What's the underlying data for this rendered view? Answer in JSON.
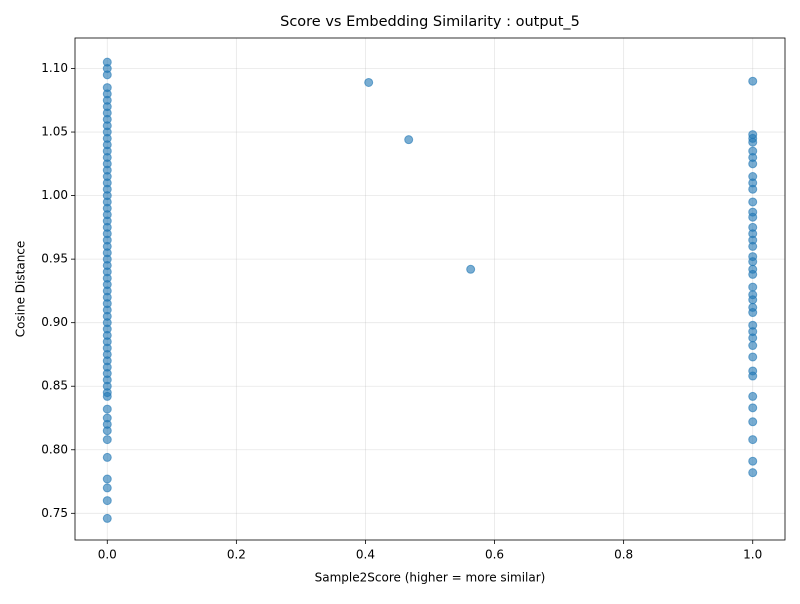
{
  "chart_data": {
    "type": "scatter",
    "title": "Score vs Embedding Similarity : output_5",
    "x_label": "Sample2Score (higher = more similar)",
    "y_label": "Cosine Distance",
    "series": [
      {
        "name": "output_5",
        "color": "#1f77b4",
        "x": [
          0,
          0,
          0,
          0,
          0,
          0,
          0,
          0,
          0,
          0,
          0,
          0,
          0,
          0,
          0,
          0,
          0,
          0,
          0,
          0,
          0,
          0,
          0,
          0,
          0,
          0,
          0,
          0,
          0,
          0,
          0,
          0,
          0,
          0,
          0,
          0,
          0,
          0,
          0,
          0,
          0,
          0,
          0,
          0,
          0,
          0,
          0,
          0,
          0,
          0,
          0,
          0,
          0,
          0,
          0,
          0,
          0,
          0,
          0,
          0,
          0,
          0,
          0,
          1,
          1,
          1,
          1,
          1,
          1,
          1,
          1,
          1,
          1,
          1,
          1,
          1,
          1,
          1,
          1,
          1,
          1,
          1,
          1,
          1,
          1,
          1,
          1,
          1,
          1,
          1,
          1,
          1,
          1,
          1,
          1,
          1,
          1,
          1,
          1,
          1,
          1,
          1,
          0.405,
          0.467,
          0.563
        ],
        "values": [
          1.105,
          1.1,
          1.095,
          1.085,
          1.08,
          1.075,
          1.07,
          1.065,
          1.06,
          1.055,
          1.05,
          1.045,
          1.04,
          1.035,
          1.03,
          1.025,
          1.02,
          1.015,
          1.01,
          1.005,
          1.0,
          0.995,
          0.99,
          0.985,
          0.98,
          0.975,
          0.97,
          0.965,
          0.96,
          0.955,
          0.95,
          0.945,
          0.94,
          0.935,
          0.93,
          0.925,
          0.92,
          0.915,
          0.91,
          0.905,
          0.9,
          0.895,
          0.89,
          0.885,
          0.88,
          0.875,
          0.87,
          0.865,
          0.86,
          0.855,
          0.85,
          0.845,
          0.842,
          0.832,
          0.825,
          0.82,
          0.815,
          0.808,
          0.794,
          0.777,
          0.77,
          0.76,
          0.746,
          1.09,
          1.048,
          1.045,
          1.042,
          1.035,
          1.03,
          1.025,
          1.015,
          1.01,
          1.005,
          0.995,
          0.987,
          0.983,
          0.975,
          0.97,
          0.965,
          0.96,
          0.952,
          0.948,
          0.942,
          0.938,
          0.928,
          0.922,
          0.918,
          0.912,
          0.908,
          0.898,
          0.893,
          0.888,
          0.882,
          0.873,
          0.862,
          0.858,
          0.842,
          0.833,
          0.822,
          0.808,
          0.791,
          0.782,
          1.089,
          1.044,
          0.942
        ]
      }
    ],
    "xlim": [
      -0.05,
      1.05
    ],
    "ylim": [
      0.729,
      1.124
    ],
    "xticks": [
      {
        "value": 0,
        "label": "0.0"
      },
      {
        "value": 0.2,
        "label": "0.2"
      },
      {
        "value": 0.4,
        "label": "0.4"
      },
      {
        "value": 0.6,
        "label": "0.6"
      },
      {
        "value": 0.8,
        "label": "0.8"
      },
      {
        "value": 1,
        "label": "1.0"
      }
    ],
    "yticks": [
      0.75,
      {
        "value": 0.8,
        "label": "0.80"
      },
      0.85,
      {
        "value": 0.9,
        "label": "0.90"
      },
      0.95,
      {
        "value": 1,
        "label": "1.00"
      },
      1.05,
      {
        "value": 1.1,
        "label": "1.10"
      }
    ],
    "grid": true
  }
}
